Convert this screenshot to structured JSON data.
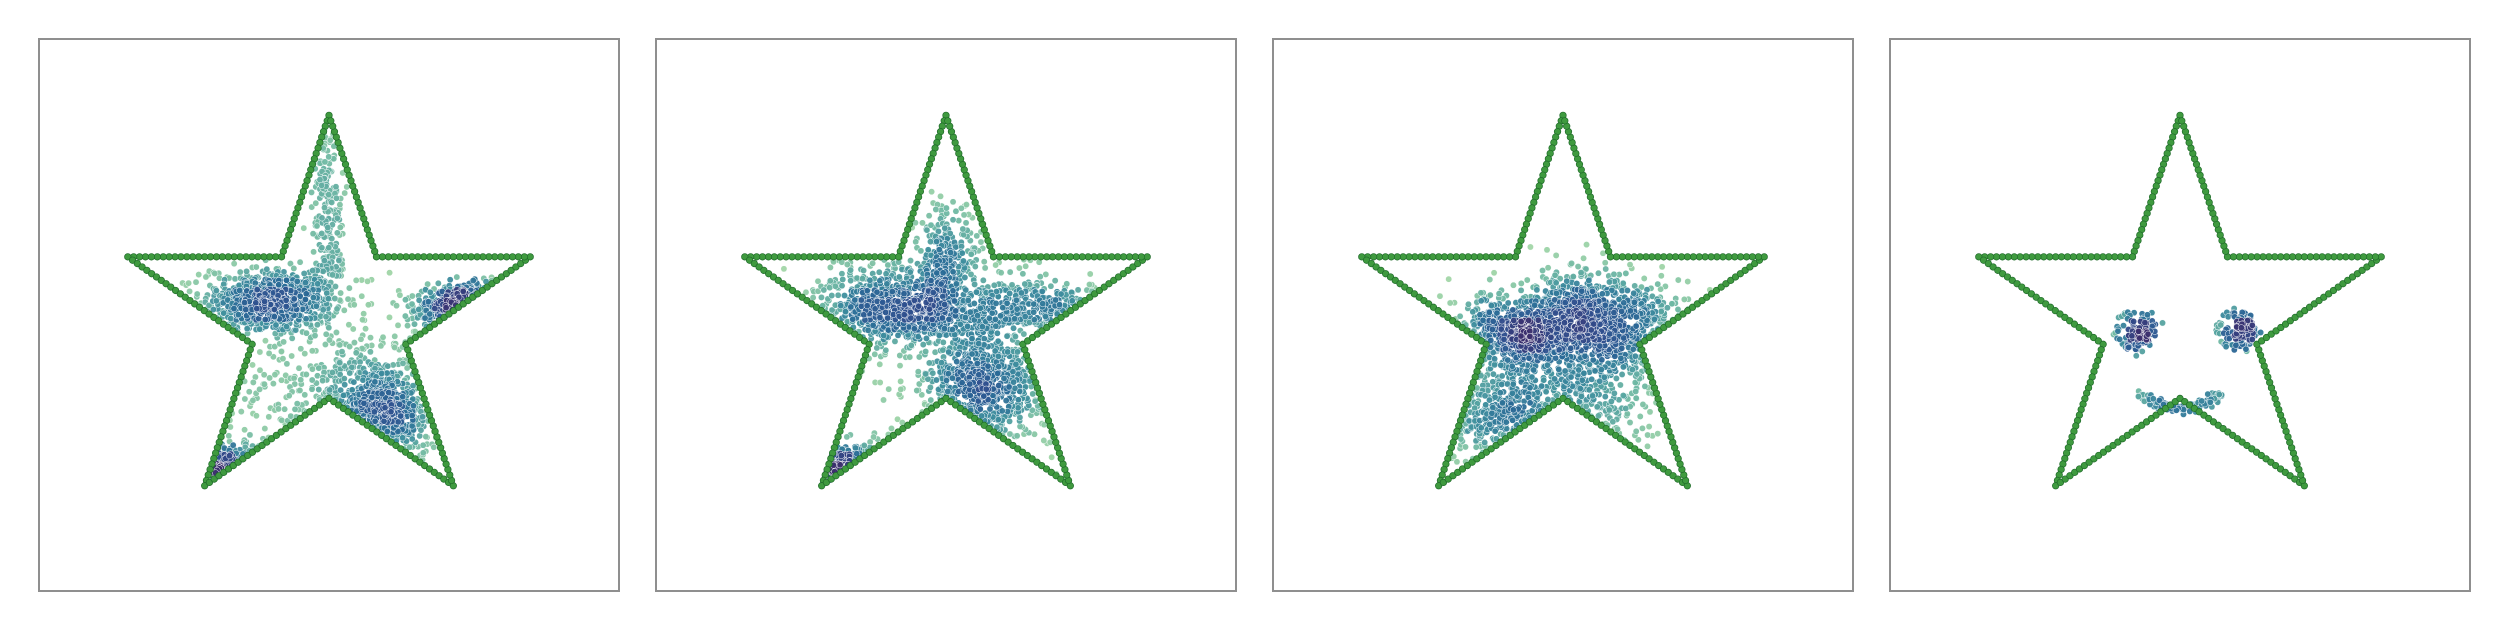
{
  "figure": {
    "panel_count": 4,
    "border_color": "#8f8f8f",
    "outline_color": "#3f9a3f",
    "outline_edge_color": "#1f6b2a",
    "colormap": "crest",
    "colormap_stops": [
      "#a6d9a8",
      "#6fb8a3",
      "#3f8f9e",
      "#2a6b97",
      "#2f4f8e",
      "#3b2f6e"
    ]
  },
  "chart_data": [
    {
      "type": "scatter",
      "description_key": "panel-1",
      "xlim": [
        -1.3,
        1.3
      ],
      "ylim": [
        -1.25,
        1.3
      ],
      "outline": {
        "shape": "five-point-star",
        "outer_radius": 1.0,
        "inner_radius": 0.382,
        "points_per_edge": 26
      },
      "clusters": [
        {
          "center": [
            -0.28,
            0.09
          ],
          "spread": [
            0.16,
            0.08
          ],
          "count": 700
        },
        {
          "center": [
            0.22,
            -0.45
          ],
          "spread": [
            0.15,
            0.14
          ],
          "count": 650
        },
        {
          "center": [
            0.72,
            0.06
          ],
          "spread": [
            0.13,
            0.05
          ],
          "count": 380
        },
        {
          "center": [
            -0.5,
            -0.8
          ],
          "spread": [
            0.14,
            0.08
          ],
          "count": 280
        },
        {
          "center": [
            0.0,
            0.55
          ],
          "spread": [
            0.04,
            0.3
          ],
          "count": 200
        },
        {
          "center": [
            -0.2,
            -0.35
          ],
          "spread": [
            0.3,
            0.3
          ],
          "count": 200
        }
      ]
    },
    {
      "type": "scatter",
      "description_key": "panel-2",
      "xlim": [
        -1.3,
        1.3
      ],
      "ylim": [
        -1.25,
        1.3
      ],
      "outline": {
        "shape": "five-point-star",
        "outer_radius": 1.0,
        "inner_radius": 0.382,
        "points_per_edge": 26
      },
      "clusters": [
        {
          "center": [
            -0.22,
            0.06
          ],
          "spread": [
            0.2,
            0.1
          ],
          "count": 800
        },
        {
          "center": [
            0.18,
            -0.34
          ],
          "spread": [
            0.14,
            0.14
          ],
          "count": 550
        },
        {
          "center": [
            0.0,
            0.28
          ],
          "spread": [
            0.08,
            0.14
          ],
          "count": 250
        },
        {
          "center": [
            0.45,
            0.06
          ],
          "spread": [
            0.2,
            0.06
          ],
          "count": 300
        },
        {
          "center": [
            -0.45,
            -0.78
          ],
          "spread": [
            0.14,
            0.07
          ],
          "count": 230
        },
        {
          "center": [
            0.2,
            -0.2
          ],
          "spread": [
            0.35,
            0.3
          ],
          "count": 250
        }
      ]
    },
    {
      "type": "scatter",
      "description_key": "panel-3",
      "xlim": [
        -1.3,
        1.3
      ],
      "ylim": [
        -1.25,
        1.3
      ],
      "outline": {
        "shape": "five-point-star",
        "outer_radius": 1.0,
        "inner_radius": 0.382,
        "points_per_edge": 26
      },
      "clusters": [
        {
          "center": [
            -0.22,
            -0.05
          ],
          "spread": [
            0.15,
            0.08
          ],
          "count": 500
        },
        {
          "center": [
            0.22,
            -0.05
          ],
          "spread": [
            0.22,
            0.12
          ],
          "count": 600
        },
        {
          "center": [
            0.05,
            -0.28
          ],
          "spread": [
            0.28,
            0.22
          ],
          "count": 550
        },
        {
          "center": [
            -0.22,
            -0.5
          ],
          "spread": [
            0.22,
            0.12
          ],
          "count": 300
        },
        {
          "center": [
            0.1,
            0.12
          ],
          "spread": [
            0.15,
            0.08
          ],
          "count": 200
        }
      ]
    },
    {
      "type": "scatter",
      "description_key": "panel-4",
      "xlim": [
        -1.3,
        1.3
      ],
      "ylim": [
        -1.25,
        1.3
      ],
      "outline": {
        "shape": "five-point-star",
        "outer_radius": 1.0,
        "inner_radius": 0.382,
        "points_per_edge": 26
      },
      "eyes": [
        {
          "center": [
            -0.22,
            -0.05
          ],
          "ring_radius": 0.085,
          "ring_count": 45,
          "core_spread": 0.035,
          "core_count": 90
        },
        {
          "center": [
            0.26,
            -0.05
          ],
          "ring_radius": 0.085,
          "ring_count": 45,
          "core_spread": 0.035,
          "core_count": 90
        }
      ],
      "smile": {
        "center": [
          0.0,
          -0.36
        ],
        "half_width": 0.2,
        "depth": 0.07,
        "count": 110
      }
    }
  ]
}
